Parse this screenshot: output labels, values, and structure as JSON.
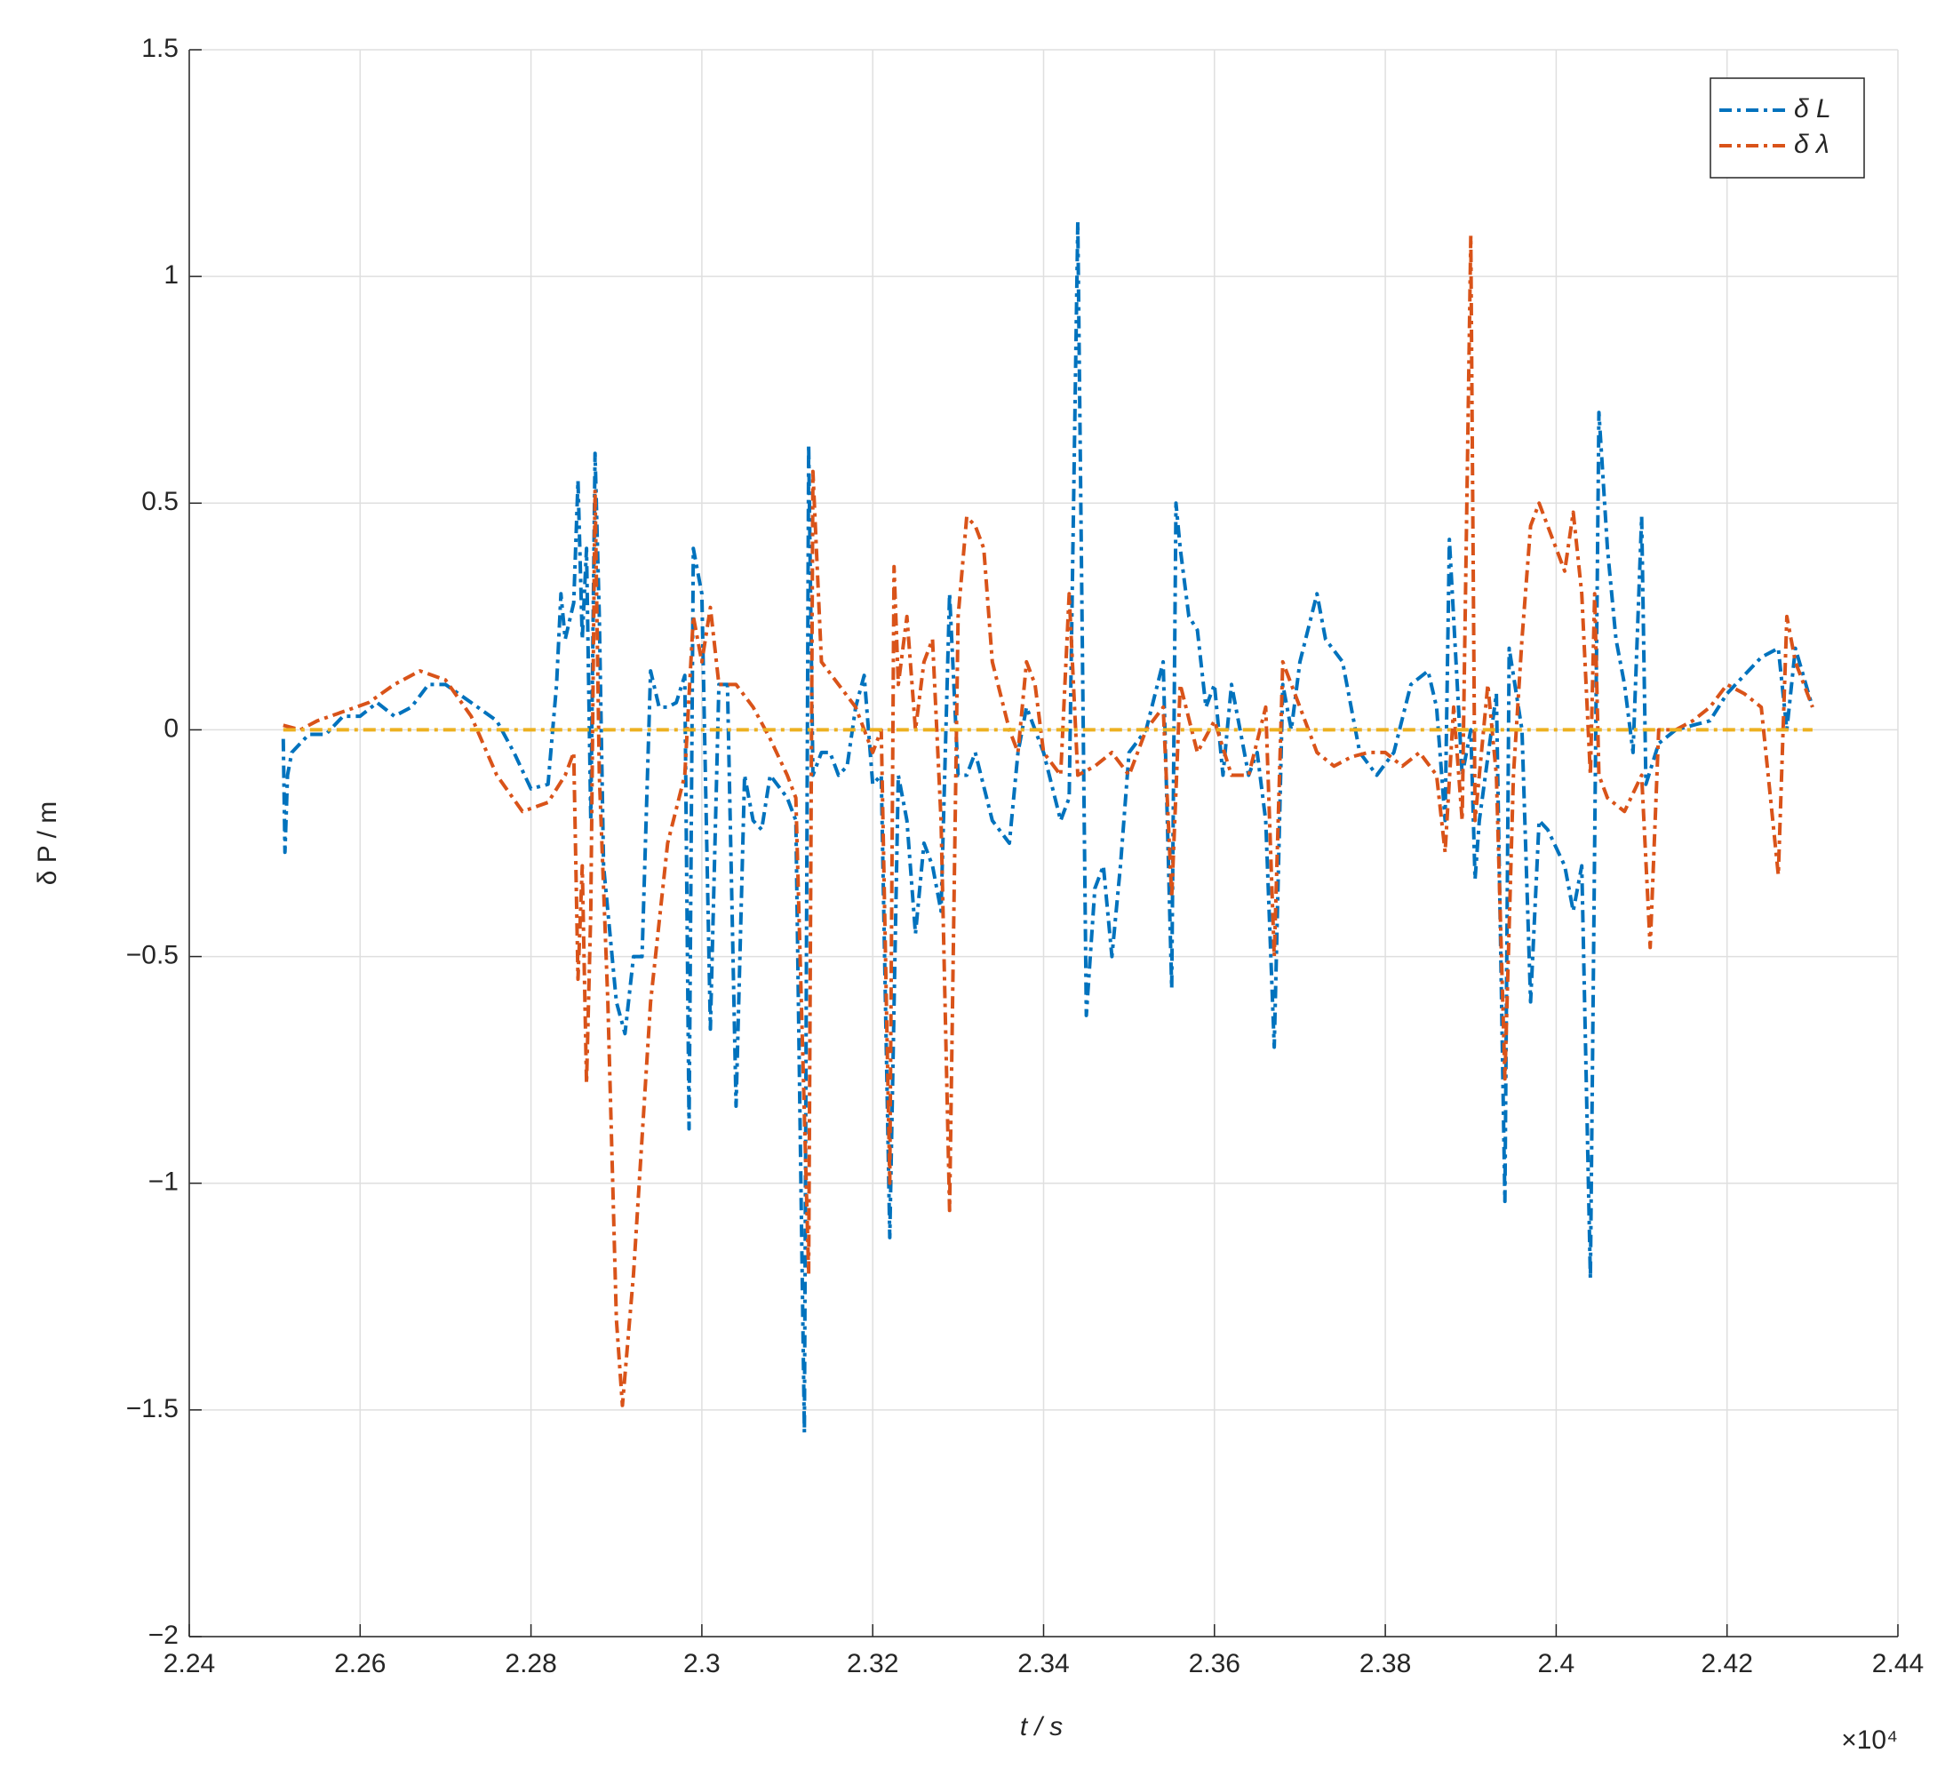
{
  "chart_data": {
    "type": "line",
    "x_label": "t  / s",
    "y_label": "δ P / m",
    "x_multiplier": "×10⁴",
    "xlim": [
      2.24,
      2.44
    ],
    "xticks": [
      2.24,
      2.26,
      2.28,
      2.3,
      2.32,
      2.34,
      2.36,
      2.38,
      2.4,
      2.42,
      2.44
    ],
    "ylim": [
      -2,
      1.5
    ],
    "yticks": [
      {
        "value": -2,
        "label": "−2"
      },
      {
        "value": -1.5,
        "label": "−1.5"
      },
      {
        "value": -1,
        "label": "−1"
      },
      {
        "value": -0.5,
        "label": "−0.5"
      },
      0,
      0.5,
      1,
      1.5
    ],
    "grid": true,
    "legend": "upper right",
    "series": [
      {
        "name": "δ L",
        "color": "#0072bd",
        "x": [
          2.251,
          2.2512,
          2.2515,
          2.252,
          2.254,
          2.256,
          2.258,
          2.26,
          2.262,
          2.264,
          2.266,
          2.268,
          2.27,
          2.273,
          2.276,
          2.278,
          2.28,
          2.282,
          2.283,
          2.2835,
          2.284,
          2.285,
          2.2855,
          2.286,
          2.2865,
          2.287,
          2.2875,
          2.288,
          2.2885,
          2.289,
          2.29,
          2.291,
          2.292,
          2.293,
          2.294,
          2.295,
          2.296,
          2.297,
          2.298,
          2.2985,
          2.299,
          2.3,
          2.301,
          2.302,
          2.303,
          2.304,
          2.305,
          2.306,
          2.307,
          2.308,
          2.31,
          2.311,
          2.312,
          2.3125,
          2.313,
          2.314,
          2.315,
          2.316,
          2.317,
          2.318,
          2.319,
          2.32,
          2.321,
          2.322,
          2.323,
          2.324,
          2.325,
          2.326,
          2.327,
          2.328,
          2.329,
          2.33,
          2.331,
          2.332,
          2.334,
          2.336,
          2.337,
          2.338,
          2.34,
          2.342,
          2.343,
          2.344,
          2.345,
          2.346,
          2.347,
          2.348,
          2.349,
          2.35,
          2.352,
          2.354,
          2.355,
          2.3555,
          2.356,
          2.357,
          2.358,
          2.359,
          2.36,
          2.361,
          2.362,
          2.364,
          2.365,
          2.366,
          2.367,
          2.368,
          2.369,
          2.37,
          2.372,
          2.373,
          2.375,
          2.377,
          2.379,
          2.381,
          2.383,
          2.385,
          2.386,
          2.387,
          2.3875,
          2.389,
          2.39,
          2.3905,
          2.391,
          2.393,
          2.394,
          2.3945,
          2.396,
          2.397,
          2.398,
          2.399,
          2.401,
          2.402,
          2.403,
          2.404,
          2.405,
          2.406,
          2.407,
          2.408,
          2.409,
          2.41,
          2.4105,
          2.412,
          2.414,
          2.416,
          2.418,
          2.42,
          2.422,
          2.424,
          2.426,
          2.427,
          2.428,
          2.43
        ],
        "values": [
          -0.02,
          -0.27,
          -0.1,
          -0.05,
          -0.01,
          -0.01,
          0.03,
          0.03,
          0.06,
          0.03,
          0.05,
          0.1,
          0.1,
          0.06,
          0.02,
          -0.05,
          -0.13,
          -0.12,
          0.1,
          0.3,
          0.2,
          0.28,
          0.55,
          0.2,
          0.4,
          -0.2,
          0.61,
          0.25,
          -0.3,
          -0.4,
          -0.6,
          -0.67,
          -0.5,
          -0.5,
          0.13,
          0.05,
          0.05,
          0.06,
          0.12,
          -0.88,
          0.4,
          0.3,
          -0.66,
          0.1,
          0.1,
          -0.83,
          -0.1,
          -0.2,
          -0.22,
          -0.1,
          -0.15,
          -0.2,
          -1.55,
          0.63,
          -0.1,
          -0.05,
          -0.05,
          -0.1,
          -0.08,
          0.05,
          0.12,
          -0.12,
          -0.1,
          -1.12,
          -0.1,
          -0.2,
          -0.45,
          -0.25,
          -0.3,
          -0.4,
          0.3,
          -0.1,
          -0.1,
          -0.05,
          -0.2,
          -0.25,
          -0.05,
          0.05,
          -0.05,
          -0.2,
          -0.15,
          1.12,
          -0.63,
          -0.35,
          -0.3,
          -0.5,
          -0.3,
          -0.05,
          0.0,
          0.15,
          -0.57,
          0.5,
          0.4,
          0.25,
          0.22,
          0.05,
          0.1,
          -0.1,
          0.1,
          -0.1,
          -0.05,
          -0.2,
          -0.7,
          0.1,
          0.0,
          0.15,
          0.3,
          0.2,
          0.15,
          -0.05,
          -0.1,
          -0.05,
          0.1,
          0.13,
          0.05,
          -0.2,
          0.42,
          -0.1,
          0.0,
          -0.33,
          -0.2,
          0.08,
          -1.04,
          0.18,
          0.0,
          -0.6,
          -0.2,
          -0.22,
          -0.3,
          -0.4,
          -0.3,
          -1.21,
          0.7,
          0.4,
          0.2,
          0.1,
          -0.05,
          0.47,
          -0.12,
          -0.03,
          0.0,
          0.01,
          0.02,
          0.08,
          0.12,
          0.16,
          0.18,
          0.0,
          0.18,
          0.05
        ]
      },
      {
        "name": "δ λ",
        "color": "#d95319",
        "x": [
          2.251,
          2.253,
          2.255,
          2.258,
          2.261,
          2.264,
          2.267,
          2.27,
          2.273,
          2.276,
          2.279,
          2.282,
          2.284,
          2.285,
          2.2855,
          2.286,
          2.2865,
          2.287,
          2.2875,
          2.288,
          2.289,
          2.29,
          2.2907,
          2.292,
          2.294,
          2.296,
          2.298,
          2.299,
          2.3,
          2.301,
          2.302,
          2.304,
          2.306,
          2.308,
          2.31,
          2.311,
          2.3125,
          2.313,
          2.314,
          2.316,
          2.318,
          2.32,
          2.321,
          2.322,
          2.3225,
          2.323,
          2.324,
          2.325,
          2.326,
          2.327,
          2.328,
          2.329,
          2.33,
          2.331,
          2.332,
          2.333,
          2.334,
          2.336,
          2.337,
          2.338,
          2.339,
          2.34,
          2.342,
          2.343,
          2.344,
          2.346,
          2.348,
          2.35,
          2.352,
          2.354,
          2.355,
          2.356,
          2.358,
          2.36,
          2.362,
          2.364,
          2.366,
          2.367,
          2.368,
          2.37,
          2.372,
          2.374,
          2.376,
          2.378,
          2.38,
          2.382,
          2.384,
          2.386,
          2.387,
          2.388,
          2.389,
          2.39,
          2.3905,
          2.391,
          2.392,
          2.393,
          2.394,
          2.395,
          2.396,
          2.397,
          2.398,
          2.399,
          2.4,
          2.401,
          2.402,
          2.403,
          2.404,
          2.4045,
          2.405,
          2.406,
          2.408,
          2.41,
          2.411,
          2.412,
          2.414,
          2.416,
          2.418,
          2.42,
          2.422,
          2.424,
          2.426,
          2.427,
          2.428,
          2.43
        ],
        "values": [
          0.01,
          0.0,
          0.02,
          0.04,
          0.06,
          0.1,
          0.13,
          0.11,
          0.03,
          -0.1,
          -0.18,
          -0.16,
          -0.1,
          -0.05,
          -0.55,
          -0.3,
          -0.78,
          -0.4,
          0.53,
          -0.1,
          -0.6,
          -1.3,
          -1.49,
          -1.2,
          -0.6,
          -0.25,
          -0.1,
          0.25,
          0.15,
          0.27,
          0.1,
          0.1,
          0.05,
          -0.02,
          -0.1,
          -0.15,
          -1.2,
          0.57,
          0.15,
          0.1,
          0.05,
          -0.05,
          0.0,
          -1.0,
          0.36,
          0.1,
          0.25,
          0.0,
          0.15,
          0.2,
          -0.2,
          -1.06,
          0.25,
          0.47,
          0.45,
          0.4,
          0.15,
          0.0,
          -0.05,
          0.15,
          0.1,
          -0.05,
          -0.1,
          0.3,
          -0.1,
          -0.08,
          -0.05,
          -0.1,
          0.0,
          0.05,
          -0.37,
          0.1,
          -0.05,
          0.02,
          -0.1,
          -0.1,
          0.05,
          -0.5,
          0.15,
          0.05,
          -0.05,
          -0.08,
          -0.06,
          -0.05,
          -0.05,
          -0.08,
          -0.05,
          -0.1,
          -0.27,
          0.05,
          -0.2,
          1.09,
          -0.2,
          -0.1,
          0.1,
          -0.1,
          -0.77,
          -0.1,
          0.2,
          0.45,
          0.5,
          0.45,
          0.4,
          0.35,
          0.48,
          0.3,
          -0.1,
          0.3,
          -0.1,
          -0.15,
          -0.18,
          -0.1,
          -0.48,
          0.0,
          0.0,
          0.02,
          0.05,
          0.1,
          0.08,
          0.05,
          -0.32,
          0.25,
          0.15,
          0.05
        ]
      },
      {
        "color": "#edb120",
        "x": [
          2.251,
          2.43
        ],
        "values": [
          0,
          0
        ]
      }
    ]
  }
}
